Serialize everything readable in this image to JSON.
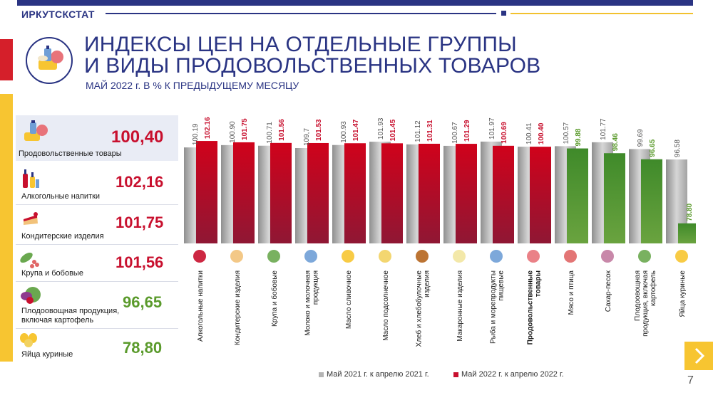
{
  "header": {
    "brand": "ИРКУТСКСТАТ"
  },
  "title": {
    "line1": "ИНДЕКСЫ ЦЕН НА ОТДЕЛЬНЫЕ ГРУППЫ",
    "line2": "И ВИДЫ ПРОДОВОЛЬСТВЕННЫХ ТОВАРОВ",
    "subtitle": "МАЙ 2022 г. В % К ПРЕДЫДУЩЕМУ МЕСЯЦУ"
  },
  "sidebar": {
    "items": [
      {
        "label": "Продовольственные товары",
        "value": "100,40",
        "color": "#c8102e",
        "icon": "groceries-icon"
      },
      {
        "label": "Алкогольные напитки",
        "value": "102,16",
        "color": "#c8102e",
        "icon": "bottles-icon"
      },
      {
        "label": "Кондитерские изделия",
        "value": "101,75",
        "color": "#c8102e",
        "icon": "cake-icon"
      },
      {
        "label": "Крупа и бобовые",
        "value": "101,56",
        "color": "#c8102e",
        "icon": "beans-icon"
      },
      {
        "label": "Плодоовощная продукция, включая картофель",
        "value": "96,65",
        "color": "#5a9a2b",
        "icon": "vegetables-icon"
      },
      {
        "label": "Яйца куриные",
        "value": "78,80",
        "color": "#5a9a2b",
        "icon": "eggs-icon"
      }
    ]
  },
  "chart_data": {
    "type": "bar",
    "categories": [
      "Алкогольные напитки",
      "Кондитерские изделия",
      "Крупа и бобовые",
      "Молоко и молочная продукция",
      "Масло сливочное",
      "Масло подсолнечное",
      "Хлеб и хлебобулочные изделия",
      "Макаронные изделия",
      "Рыба и морепродукты пищевые",
      "Продовольственные товары",
      "Мясо и птица",
      "Сахар-песок",
      "Плодоовощная продукция, включая картофель",
      "Яйца куриные"
    ],
    "category_icons": [
      "bottles-icon",
      "cake-icon",
      "beans-icon",
      "milk-icon",
      "butter-icon",
      "oil-icon",
      "bread-icon",
      "pasta-icon",
      "fish-icon",
      "groceries-icon",
      "meat-icon",
      "sugar-icon",
      "vegetables-icon",
      "eggs-icon"
    ],
    "bold_category": "Продовольственные товары",
    "series": [
      {
        "name": "Май 2021 г. к апрелю 2021 г.",
        "color": "#b4b4b4",
        "values": [
          100.19,
          100.9,
          100.71,
          109.7,
          100.93,
          101.93,
          101.12,
          100.67,
          101.97,
          100.41,
          100.57,
          101.77,
          99.69,
          96.58
        ],
        "labels": [
          "100.19",
          "100.90",
          "100.71",
          "109,7",
          "100.93",
          "101.93",
          "101.12",
          "100.67",
          "101.97",
          "100.41",
          "100.57",
          "101.77",
          "99.69",
          "96.58"
        ]
      },
      {
        "name": "Май 2022 г. к апрелю 2022 г.",
        "color": "#c8102e",
        "color_below_100": "#5a9a2b",
        "values": [
          102.16,
          101.75,
          101.56,
          101.53,
          101.47,
          101.45,
          101.31,
          101.29,
          100.69,
          100.4,
          99.88,
          98.46,
          96.65,
          78.8
        ],
        "labels": [
          "102.16",
          "101.75",
          "101.56",
          "101.53",
          "101.47",
          "101.45",
          "101.31",
          "101.29",
          "100.69",
          "100.40",
          "99.88",
          "98.46",
          "96.65",
          "78.80"
        ]
      }
    ],
    "title": "",
    "xlabel": "",
    "ylabel": "",
    "legend": "bottom"
  },
  "footer": {
    "page_number": "7",
    "next_symbol": "›"
  }
}
